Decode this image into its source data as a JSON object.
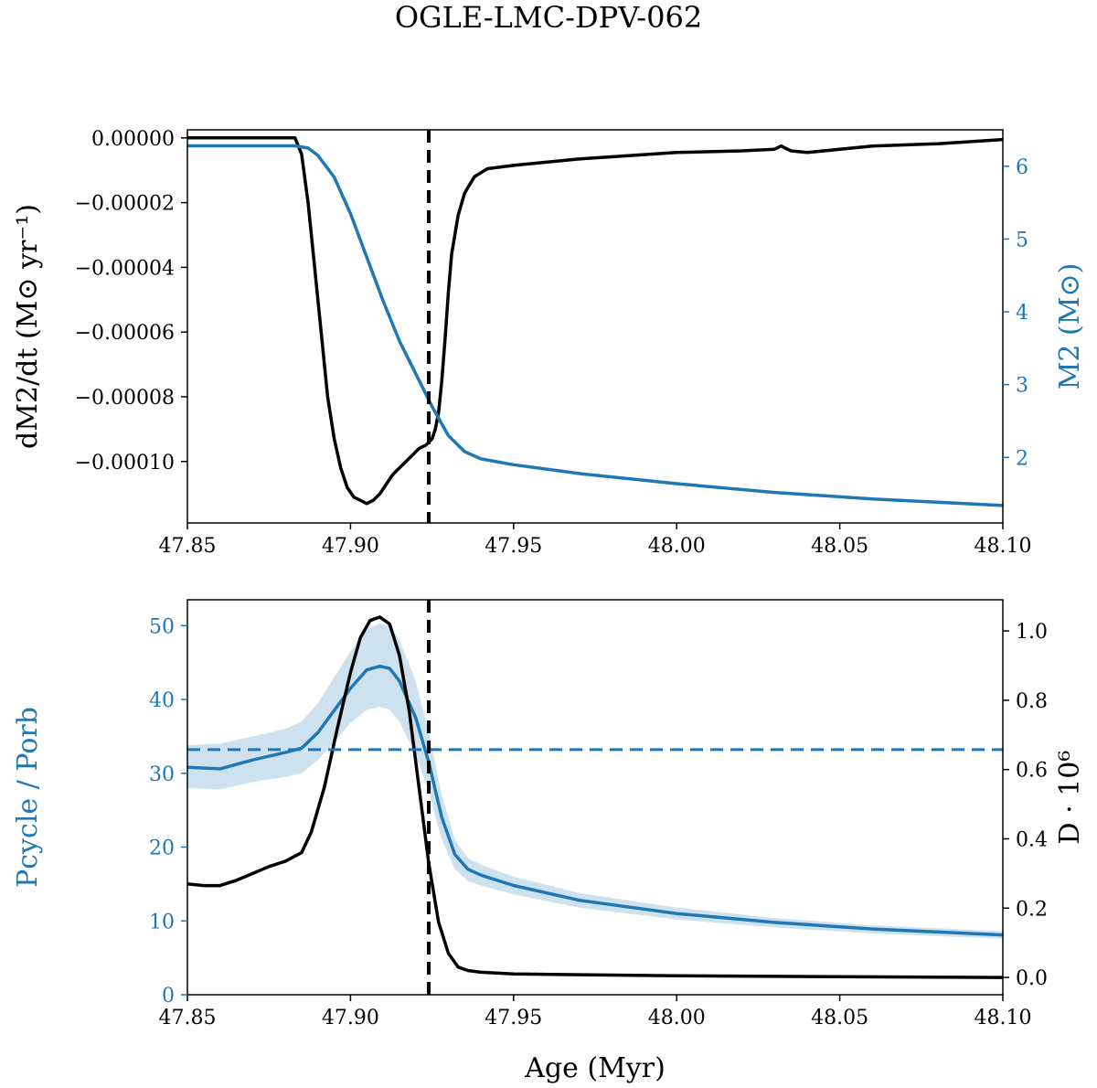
{
  "figure": {
    "title": "OGLE-LMC-DPV-062"
  },
  "chart_data": [
    {
      "type": "line",
      "panel": "top",
      "x_ticks": [
        "47.85",
        "47.90",
        "47.95",
        "48.00",
        "48.05",
        "48.10"
      ],
      "xlim": [
        47.85,
        48.1
      ],
      "left_axis": {
        "label": "dM2/dt  (M⊙ yr⁻¹)",
        "ylim": [
          -0.000119,
          2.5e-06
        ],
        "ticks": [
          0.0,
          -2e-05,
          -4e-05,
          -6e-05,
          -8e-05,
          -0.0001
        ],
        "tick_labels": [
          "0.00000",
          "−0.00002",
          "−0.00004",
          "−0.00006",
          "−0.00008",
          "−0.00010"
        ],
        "color": "#000000"
      },
      "right_axis": {
        "label": "M2  (M⊙)",
        "ylim": [
          1.1,
          6.5
        ],
        "ticks": [
          2,
          3,
          4,
          5,
          6
        ],
        "tick_labels": [
          "2",
          "3",
          "4",
          "5",
          "6"
        ],
        "color": "#1f77b4"
      },
      "vline_x": 47.924,
      "series": [
        {
          "axis": "left",
          "color": "#000000",
          "points": [
            [
              47.85,
              0.0
            ],
            [
              47.883,
              0.0
            ],
            [
              47.885,
              -5e-06
            ],
            [
              47.887,
              -2e-05
            ],
            [
              47.889,
              -4e-05
            ],
            [
              47.891,
              -6e-05
            ],
            [
              47.893,
              -8e-05
            ],
            [
              47.895,
              -9.3e-05
            ],
            [
              47.897,
              -0.000102
            ],
            [
              47.899,
              -0.000108
            ],
            [
              47.901,
              -0.000111
            ],
            [
              47.903,
              -0.000112
            ],
            [
              47.905,
              -0.000113
            ],
            [
              47.907,
              -0.000112
            ],
            [
              47.909,
              -0.00011
            ],
            [
              47.911,
              -0.000107
            ],
            [
              47.913,
              -0.000104
            ],
            [
              47.915,
              -0.000102
            ],
            [
              47.917,
              -0.0001
            ],
            [
              47.919,
              -9.8e-05
            ],
            [
              47.921,
              -9.6e-05
            ],
            [
              47.923,
              -9.5e-05
            ],
            [
              47.925,
              -9.3e-05
            ],
            [
              47.926,
              -9e-05
            ],
            [
              47.927,
              -8.5e-05
            ],
            [
              47.928,
              -7.5e-05
            ],
            [
              47.929,
              -6.2e-05
            ],
            [
              47.93,
              -4.8e-05
            ],
            [
              47.931,
              -3.6e-05
            ],
            [
              47.933,
              -2.4e-05
            ],
            [
              47.935,
              -1.7e-05
            ],
            [
              47.938,
              -1.2e-05
            ],
            [
              47.942,
              -9.5e-06
            ],
            [
              47.95,
              -8.5e-06
            ],
            [
              47.97,
              -6.5e-06
            ],
            [
              48.0,
              -4.5e-06
            ],
            [
              48.02,
              -4e-06
            ],
            [
              48.03,
              -3.5e-06
            ],
            [
              48.032,
              -2.5e-06
            ],
            [
              48.035,
              -4e-06
            ],
            [
              48.04,
              -4.5e-06
            ],
            [
              48.06,
              -2.5e-06
            ],
            [
              48.08,
              -1.8e-06
            ],
            [
              48.1,
              -5e-07
            ]
          ]
        },
        {
          "axis": "right",
          "color": "#1f77b4",
          "points": [
            [
              47.85,
              6.28
            ],
            [
              47.883,
              6.28
            ],
            [
              47.887,
              6.25
            ],
            [
              47.89,
              6.15
            ],
            [
              47.895,
              5.85
            ],
            [
              47.9,
              5.35
            ],
            [
              47.905,
              4.75
            ],
            [
              47.91,
              4.15
            ],
            [
              47.915,
              3.6
            ],
            [
              47.92,
              3.15
            ],
            [
              47.925,
              2.7
            ],
            [
              47.93,
              2.3
            ],
            [
              47.935,
              2.08
            ],
            [
              47.94,
              1.98
            ],
            [
              47.95,
              1.9
            ],
            [
              47.97,
              1.78
            ],
            [
              48.0,
              1.64
            ],
            [
              48.03,
              1.52
            ],
            [
              48.06,
              1.43
            ],
            [
              48.1,
              1.34
            ]
          ]
        }
      ]
    },
    {
      "type": "line",
      "panel": "bottom",
      "x_ticks": [
        "47.85",
        "47.90",
        "47.95",
        "48.00",
        "48.05",
        "48.10"
      ],
      "xlim": [
        47.85,
        48.1
      ],
      "xlabel": "Age (Myr)",
      "left_axis": {
        "label": "Pcycle / Porb",
        "ylim": [
          0,
          53.5
        ],
        "ticks": [
          0,
          10,
          20,
          30,
          40,
          50
        ],
        "tick_labels": [
          "0",
          "10",
          "20",
          "30",
          "40",
          "50"
        ],
        "color": "#1f77b4"
      },
      "right_axis": {
        "label": "D · 10⁶",
        "ylim": [
          -0.05,
          1.09
        ],
        "ticks": [
          0.0,
          0.2,
          0.4,
          0.6,
          0.8,
          1.0
        ],
        "tick_labels": [
          "0.0",
          "0.2",
          "0.4",
          "0.6",
          "0.8",
          "1.0"
        ],
        "color": "#000000"
      },
      "vline_x": 47.924,
      "hline_left_y": 33.2,
      "series": [
        {
          "axis": "left",
          "color": "#1f77b4",
          "points": [
            [
              47.85,
              30.8
            ],
            [
              47.86,
              30.6
            ],
            [
              47.87,
              31.8
            ],
            [
              47.88,
              32.8
            ],
            [
              47.885,
              33.4
            ],
            [
              47.89,
              35.5
            ],
            [
              47.895,
              38.5
            ],
            [
              47.9,
              41.5
            ],
            [
              47.905,
              44.0
            ],
            [
              47.909,
              44.5
            ],
            [
              47.912,
              44.2
            ],
            [
              47.915,
              42.5
            ],
            [
              47.92,
              37.5
            ],
            [
              47.924,
              31.5
            ],
            [
              47.928,
              24.0
            ],
            [
              47.932,
              19.0
            ],
            [
              47.936,
              17.0
            ],
            [
              47.94,
              16.2
            ],
            [
              47.95,
              14.8
            ],
            [
              47.97,
              12.8
            ],
            [
              48.0,
              11.0
            ],
            [
              48.03,
              9.8
            ],
            [
              48.06,
              8.9
            ],
            [
              48.1,
              8.1
            ]
          ],
          "band_upper": [
            [
              47.85,
              33.8
            ],
            [
              47.86,
              34.0
            ],
            [
              47.87,
              35.0
            ],
            [
              47.88,
              36.0
            ],
            [
              47.885,
              37.0
            ],
            [
              47.89,
              39.5
            ],
            [
              47.895,
              43.0
            ],
            [
              47.9,
              46.5
            ],
            [
              47.905,
              49.5
            ],
            [
              47.909,
              50.3
            ],
            [
              47.912,
              50.0
            ],
            [
              47.915,
              48.0
            ],
            [
              47.92,
              42.5
            ],
            [
              47.924,
              35.5
            ],
            [
              47.928,
              27.0
            ],
            [
              47.932,
              21.0
            ],
            [
              47.936,
              18.5
            ],
            [
              47.94,
              17.6
            ],
            [
              47.95,
              16.0
            ],
            [
              47.97,
              13.8
            ],
            [
              48.0,
              11.8
            ],
            [
              48.03,
              10.4
            ],
            [
              48.06,
              9.4
            ],
            [
              48.1,
              8.6
            ]
          ],
          "band_lower": [
            [
              47.85,
              28.0
            ],
            [
              47.86,
              27.8
            ],
            [
              47.87,
              28.8
            ],
            [
              47.88,
              29.5
            ],
            [
              47.885,
              30.0
            ],
            [
              47.89,
              31.8
            ],
            [
              47.895,
              34.2
            ],
            [
              47.9,
              36.8
            ],
            [
              47.905,
              38.6
            ],
            [
              47.909,
              39.0
            ],
            [
              47.912,
              38.6
            ],
            [
              47.915,
              37.0
            ],
            [
              47.92,
              32.5
            ],
            [
              47.924,
              27.5
            ],
            [
              47.928,
              21.0
            ],
            [
              47.932,
              17.0
            ],
            [
              47.936,
              15.4
            ],
            [
              47.94,
              14.8
            ],
            [
              47.95,
              13.6
            ],
            [
              47.97,
              11.8
            ],
            [
              48.0,
              10.2
            ],
            [
              48.03,
              9.1
            ],
            [
              48.06,
              8.3
            ],
            [
              48.1,
              7.6
            ]
          ]
        },
        {
          "axis": "right",
          "color": "#000000",
          "points": [
            [
              47.85,
              0.27
            ],
            [
              47.855,
              0.265
            ],
            [
              47.86,
              0.265
            ],
            [
              47.865,
              0.28
            ],
            [
              47.87,
              0.3
            ],
            [
              47.875,
              0.32
            ],
            [
              47.88,
              0.335
            ],
            [
              47.885,
              0.36
            ],
            [
              47.888,
              0.42
            ],
            [
              47.892,
              0.55
            ],
            [
              47.896,
              0.72
            ],
            [
              47.9,
              0.88
            ],
            [
              47.903,
              0.98
            ],
            [
              47.906,
              1.03
            ],
            [
              47.909,
              1.04
            ],
            [
              47.912,
              1.02
            ],
            [
              47.915,
              0.93
            ],
            [
              47.918,
              0.77
            ],
            [
              47.921,
              0.55
            ],
            [
              47.924,
              0.33
            ],
            [
              47.927,
              0.16
            ],
            [
              47.93,
              0.07
            ],
            [
              47.933,
              0.03
            ],
            [
              47.936,
              0.02
            ],
            [
              47.94,
              0.015
            ],
            [
              47.95,
              0.01
            ],
            [
              48.0,
              0.005
            ],
            [
              48.05,
              0.002
            ],
            [
              48.1,
              0.0
            ]
          ]
        }
      ]
    }
  ]
}
